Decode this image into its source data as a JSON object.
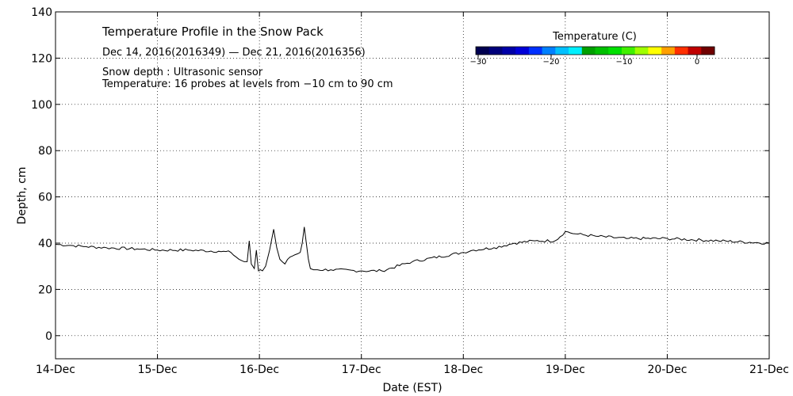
{
  "chart_data": {
    "type": "line",
    "title": "Temperature Profile in the Snow Pack",
    "date_range": "Dec 14, 2016(2016349) — Dec 21, 2016(2016356)",
    "notes": [
      "Snow depth : Ultrasonic sensor",
      "Temperature: 16 probes at levels from −10 cm to 90 cm"
    ],
    "xlabel": "Date (EST)",
    "ylabel": "Depth, cm",
    "x_ticks": [
      "14-Dec",
      "15-Dec",
      "16-Dec",
      "17-Dec",
      "18-Dec",
      "19-Dec",
      "20-Dec",
      "21-Dec"
    ],
    "xlim": [
      0,
      7
    ],
    "x_unit": "days since 14-Dec",
    "ylim": [
      -10,
      140
    ],
    "y_ticks": [
      0,
      20,
      40,
      60,
      80,
      100,
      120,
      140
    ],
    "grid": true,
    "colorbar": {
      "title": "Temperature (C)",
      "ticks": [
        "−30",
        "−20",
        "−10",
        "0"
      ],
      "colors": [
        "#000050",
        "#00007a",
        "#0000a8",
        "#0000d8",
        "#0030ff",
        "#0080ff",
        "#00c0ff",
        "#00f0ff",
        "#00a000",
        "#00c000",
        "#00e000",
        "#40f000",
        "#a0ff00",
        "#ffff00",
        "#ffa000",
        "#ff3000",
        "#c00000",
        "#700000"
      ]
    },
    "series": [
      {
        "name": "Snow depth",
        "x": [
          0.0,
          0.15,
          0.3,
          0.5,
          0.8,
          1.0,
          1.3,
          1.6,
          1.72,
          1.8,
          1.85,
          1.88,
          1.9,
          1.92,
          1.95,
          1.97,
          1.99,
          2.01,
          2.03,
          2.06,
          2.1,
          2.14,
          2.17,
          2.2,
          2.25,
          2.3,
          2.35,
          2.4,
          2.42,
          2.44,
          2.46,
          2.48,
          2.5,
          2.53,
          2.57,
          2.7,
          3.0,
          3.2,
          3.5,
          4.0,
          4.1,
          4.3,
          4.5,
          4.7,
          4.9,
          5.0,
          5.1,
          5.3,
          5.6,
          6.0,
          6.5,
          7.0
        ],
        "y": [
          39.5,
          39,
          38.5,
          38,
          37.5,
          37,
          37,
          36.5,
          36,
          33,
          32,
          32,
          41,
          31,
          29,
          37,
          28,
          28.5,
          28,
          30,
          37,
          46,
          38,
          33,
          31,
          34,
          35,
          36,
          40,
          47,
          40,
          33,
          29,
          28.5,
          28.5,
          28.5,
          28,
          28,
          32,
          36,
          37,
          38,
          40,
          41,
          41,
          45,
          44,
          43,
          42,
          42,
          41,
          40
        ]
      }
    ]
  }
}
